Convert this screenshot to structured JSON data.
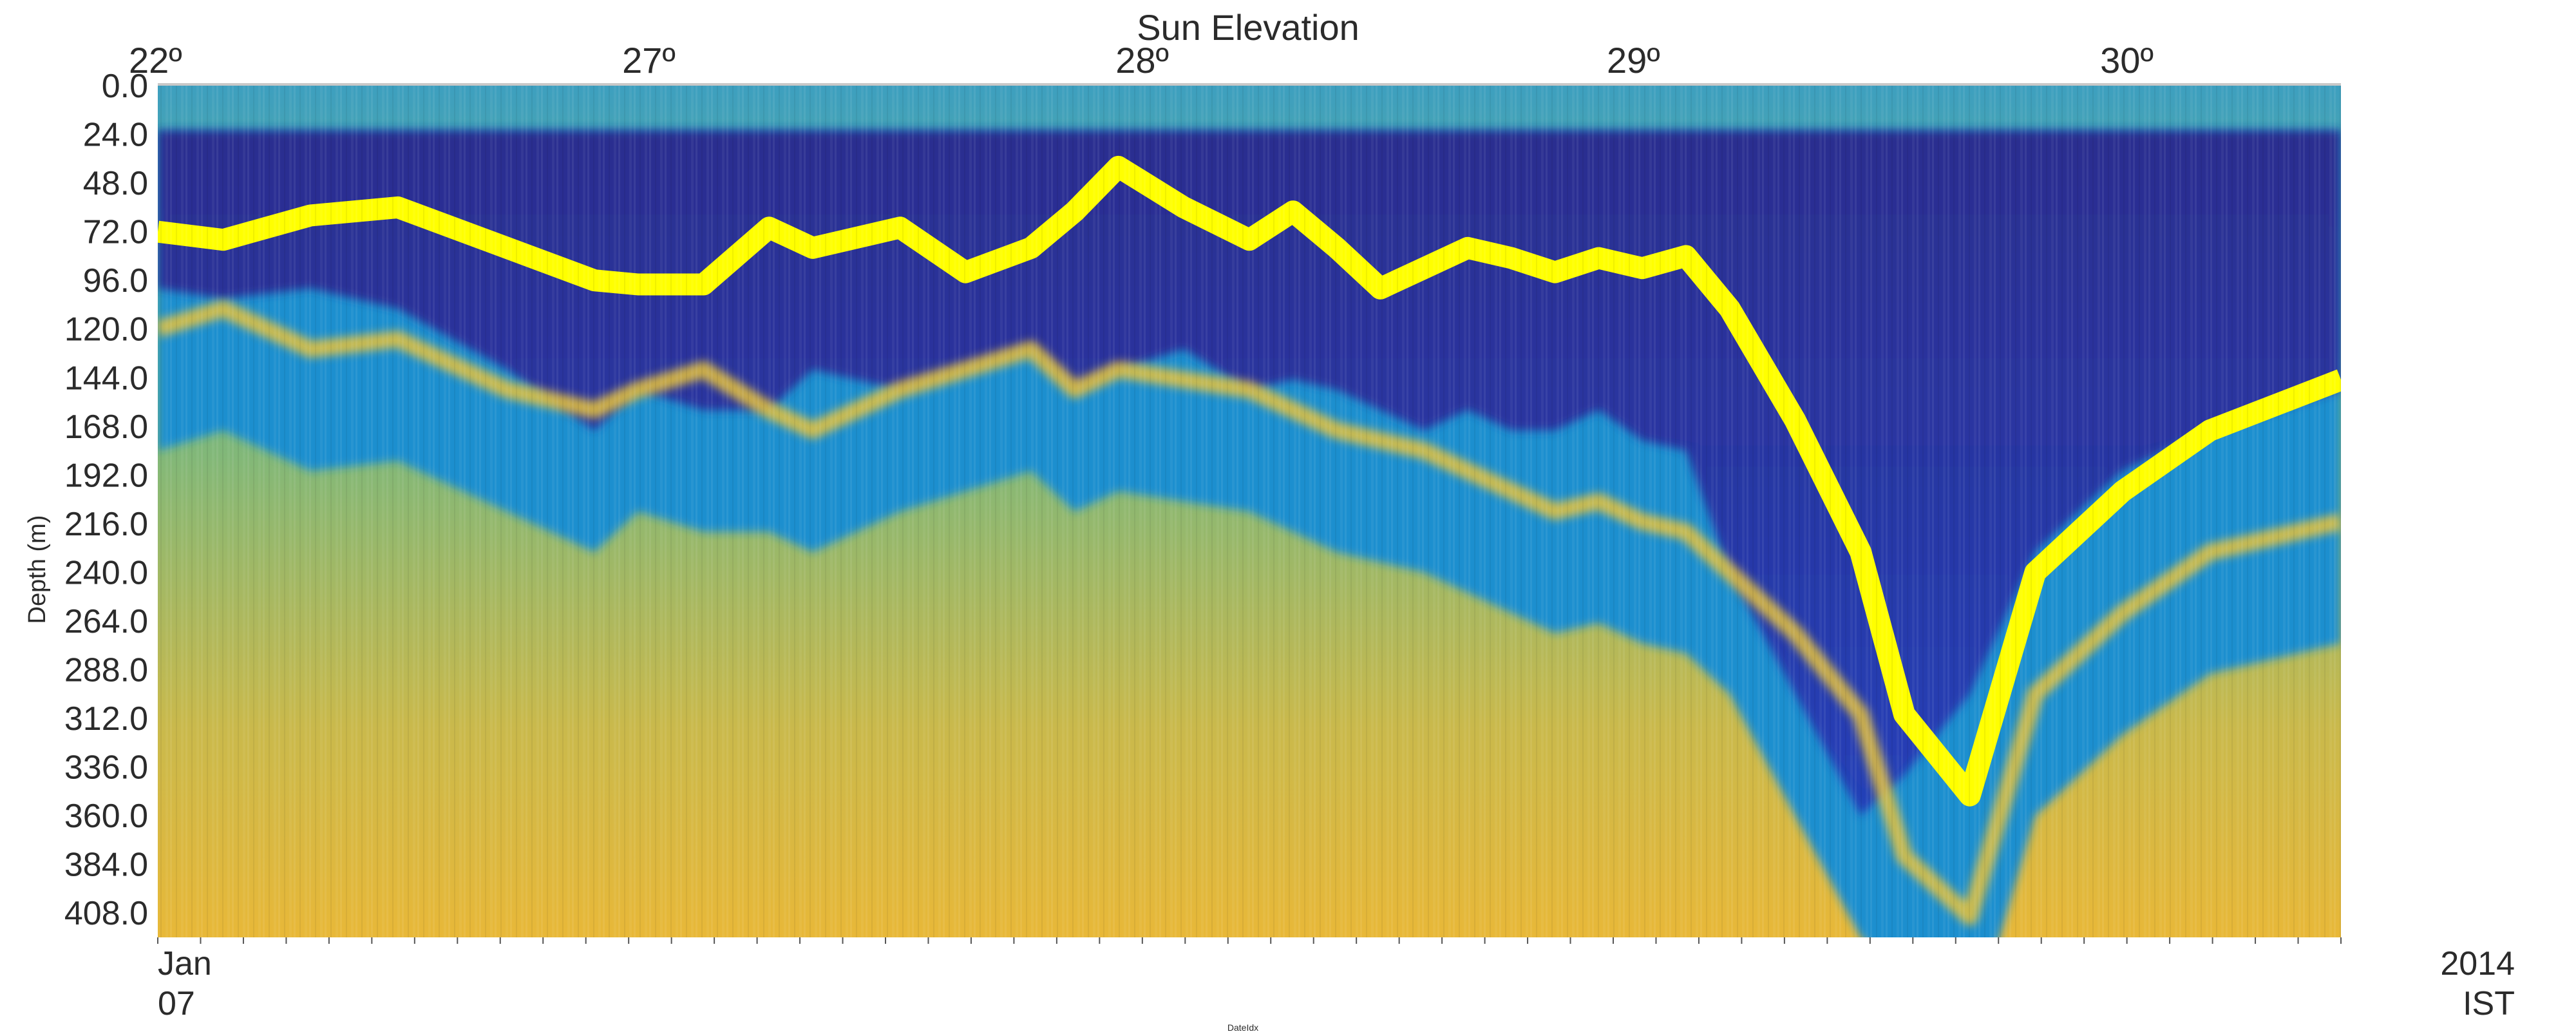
{
  "chart_data": {
    "type": "heatmap",
    "title": "Sun Elevation",
    "xlabel": "DateIdx",
    "ylabel": "Depth (m)",
    "top_axis_ticks": [
      "22º",
      "27º",
      "28º",
      "29º",
      "30º"
    ],
    "top_axis_tick_fractions": [
      0.0,
      0.226,
      0.452,
      0.677,
      0.903
    ],
    "y_ticks": [
      0.0,
      24.0,
      48.0,
      72.0,
      96.0,
      120.0,
      144.0,
      168.0,
      192.0,
      216.0,
      240.0,
      264.0,
      288.0,
      312.0,
      336.0,
      360.0,
      384.0,
      408.0
    ],
    "y_tick_labels": [
      "0.0",
      "24.0",
      "48.0",
      "72.0",
      "96.0",
      "120.0",
      "144.0",
      "168.0",
      "192.0",
      "216.0",
      "240.0",
      "264.0",
      "288.0",
      "312.0",
      "336.0",
      "360.0",
      "384.0",
      "408.0"
    ],
    "ylim": [
      0,
      420
    ],
    "y_inverted": true,
    "no_data_depth_range": [
      0,
      22
    ],
    "x_tick_label_first": [
      "Jan",
      "07"
    ],
    "x_tick_label_last": [
      "2014",
      "IST"
    ],
    "x_tick_count": 52,
    "colormap": [
      "#2a1f7a",
      "#1f3fb5",
      "#2a78d6",
      "#20a6c9",
      "#4fbf9a",
      "#9fc36a",
      "#e0b43a",
      "#f7d11c",
      "#ffff00"
    ],
    "no_data_color": "#a9a9a9",
    "grid": false,
    "legend": "none",
    "layers": {
      "x": [
        0,
        0.03,
        0.07,
        0.11,
        0.16,
        0.2,
        0.22,
        0.25,
        0.28,
        0.3,
        0.34,
        0.37,
        0.4,
        0.42,
        0.44,
        0.47,
        0.5,
        0.52,
        0.54,
        0.56,
        0.58,
        0.6,
        0.62,
        0.64,
        0.66,
        0.68,
        0.7,
        0.72,
        0.75,
        0.78,
        0.8,
        0.83,
        0.86,
        0.9,
        0.94,
        1.0
      ],
      "yellow_depth": [
        72,
        76,
        64,
        60,
        80,
        96,
        98,
        98,
        70,
        80,
        70,
        92,
        80,
        62,
        40,
        60,
        76,
        62,
        80,
        100,
        90,
        80,
        85,
        92,
        85,
        90,
        84,
        110,
        165,
        230,
        310,
        350,
        240,
        200,
        170,
        145
      ],
      "secondary_depth": [
        120,
        110,
        130,
        125,
        150,
        160,
        150,
        140,
        160,
        170,
        150,
        140,
        130,
        150,
        140,
        145,
        150,
        160,
        170,
        175,
        180,
        190,
        200,
        210,
        205,
        215,
        220,
        240,
        270,
        310,
        380,
        410,
        300,
        260,
        230,
        215
      ],
      "cold_depth": [
        100,
        105,
        100,
        110,
        140,
        170,
        150,
        160,
        160,
        140,
        150,
        140,
        130,
        150,
        140,
        130,
        150,
        145,
        150,
        160,
        170,
        160,
        170,
        170,
        160,
        175,
        180,
        240,
        300,
        360,
        340,
        300,
        230,
        190,
        170,
        150
      ]
    }
  }
}
